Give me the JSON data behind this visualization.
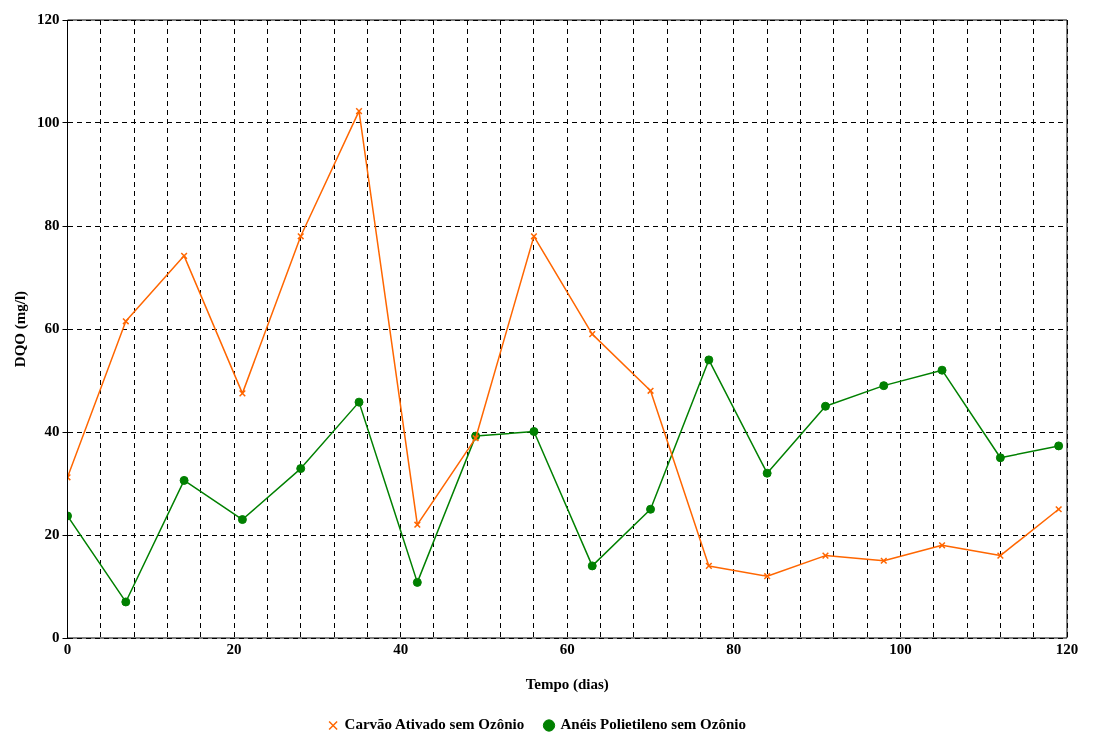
{
  "chart_data": {
    "type": "line",
    "xlabel": "Tempo (dias)",
    "ylabel": "DQO (mg/l)",
    "xlim": [
      0,
      120
    ],
    "xticks": [
      0,
      {
        "value": 4,
        "label": null
      },
      {
        "value": 8,
        "label": null
      },
      {
        "value": 12,
        "label": null
      },
      {
        "value": 16,
        "label": null
      },
      20,
      {
        "value": 24,
        "label": null
      },
      {
        "value": 28,
        "label": null
      },
      {
        "value": 32,
        "label": null
      },
      {
        "value": 36,
        "label": null
      },
      40,
      {
        "value": 44,
        "label": null
      },
      {
        "value": 48,
        "label": null
      },
      {
        "value": 52,
        "label": null
      },
      {
        "value": 56,
        "label": null
      },
      60,
      {
        "value": 64,
        "label": null
      },
      {
        "value": 68,
        "label": null
      },
      {
        "value": 72,
        "label": null
      },
      {
        "value": 76,
        "label": null
      },
      80,
      {
        "value": 84,
        "label": null
      },
      {
        "value": 88,
        "label": null
      },
      {
        "value": 92,
        "label": null
      },
      {
        "value": 96,
        "label": null
      },
      100,
      {
        "value": 104,
        "label": null
      },
      {
        "value": 108,
        "label": null
      },
      {
        "value": 112,
        "label": null
      },
      {
        "value": 116,
        "label": null
      },
      120
    ],
    "ylim": [
      0,
      120
    ],
    "yticks": [
      0,
      20,
      40,
      60,
      80,
      100,
      120
    ],
    "grid": true,
    "legend": "bottom",
    "line_style": "solid",
    "x": [
      0,
      7,
      14,
      21,
      28,
      35,
      42,
      49,
      56,
      63,
      70,
      77,
      84,
      91,
      98,
      105,
      112,
      119
    ],
    "series": [
      {
        "name": "Carvão Ativado sem Ozônio",
        "color": "#ff6600",
        "marker": "cross",
        "values": [
          31.2,
          61.5,
          74.2,
          47.5,
          78,
          102.3,
          22,
          38.8,
          78,
          59,
          48,
          14,
          12,
          16,
          15,
          18,
          16,
          25
        ]
      },
      {
        "name": "Anéis Polietileno sem Ozônio",
        "color": "#008000",
        "marker": "circle",
        "values": [
          23.7,
          7,
          30.6,
          23,
          32.9,
          45.8,
          10.8,
          39.2,
          40.1,
          14,
          25,
          54,
          32,
          45,
          49,
          52,
          35,
          37.3
        ]
      }
    ]
  }
}
